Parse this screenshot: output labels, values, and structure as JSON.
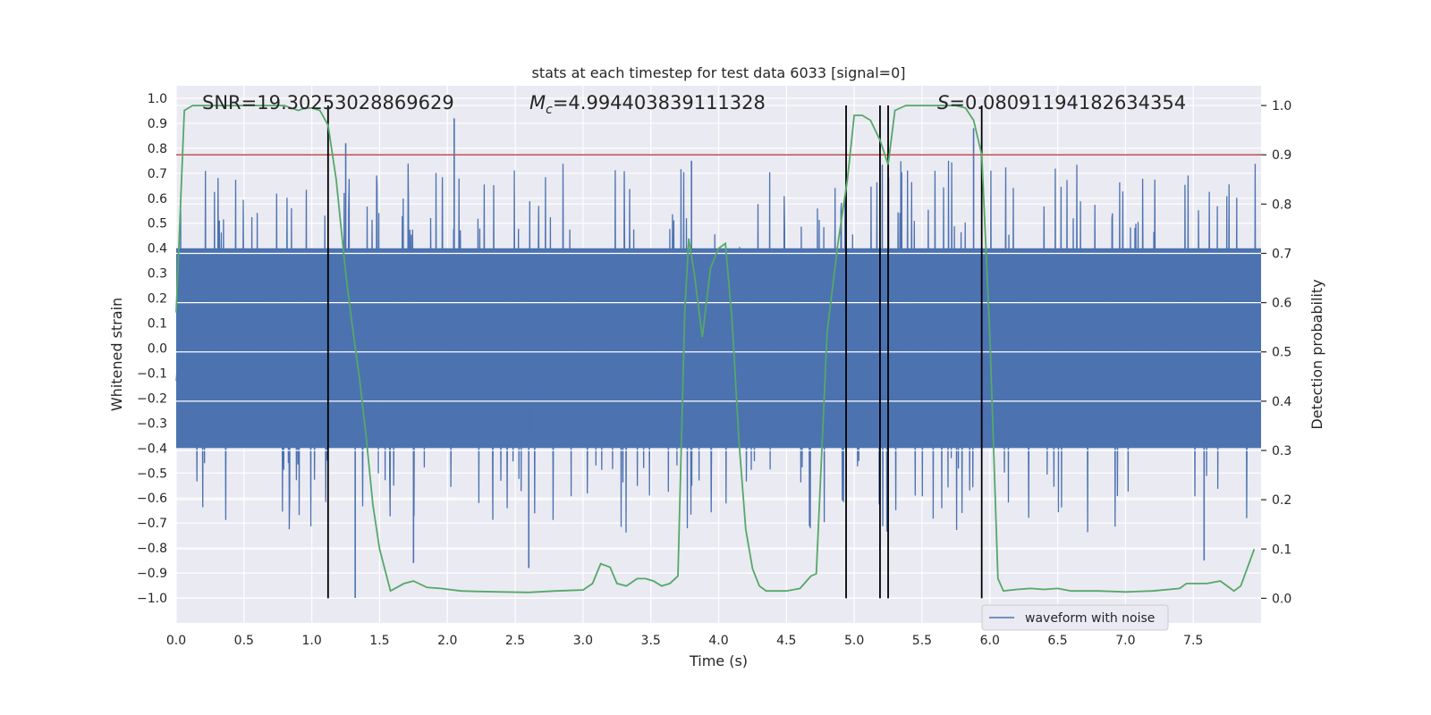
{
  "chart_data": {
    "type": "line",
    "title": "stats at each timestep for test data 6033 [signal=0]",
    "xlabel": "Time (s)",
    "ylabel_left": "Whitened strain",
    "ylabel_right": "Detection probability",
    "xlim": [
      0,
      8
    ],
    "ylim_left": [
      -1.1,
      1.05
    ],
    "ylim_right": [
      -0.05,
      1.04
    ],
    "x_ticks": [
      0.0,
      0.5,
      1.0,
      1.5,
      2.0,
      2.5,
      3.0,
      3.5,
      4.0,
      4.5,
      5.0,
      5.5,
      6.0,
      6.5,
      7.0,
      7.5
    ],
    "x_tick_labels": [
      "0.0",
      "0.5",
      "1.0",
      "1.5",
      "2.0",
      "2.5",
      "3.0",
      "3.5",
      "4.0",
      "4.5",
      "5.0",
      "5.5",
      "6.0",
      "6.5",
      "7.0",
      "7.5"
    ],
    "y_left_ticks": [
      1.0,
      0.9,
      0.8,
      0.7,
      0.6,
      0.5,
      0.4,
      0.3,
      0.2,
      0.1,
      0.0,
      -0.1,
      -0.2,
      -0.3,
      -0.4,
      -0.5,
      -0.6,
      -0.7,
      -0.8,
      -0.9,
      -1.0
    ],
    "y_left_tick_labels": [
      "1.0",
      "0.9",
      "0.8",
      "0.7",
      "0.6",
      "0.5",
      "0.4",
      "0.3",
      "0.2",
      "0.1",
      "0.0",
      "−0.1",
      "−0.2",
      "−0.3",
      "−0.4",
      "−0.5",
      "−0.6",
      "−0.7",
      "−0.8",
      "−0.9",
      "−1.0"
    ],
    "y_right_ticks": [
      1.0,
      0.9,
      0.8,
      0.7,
      0.6,
      0.5,
      0.4,
      0.3,
      0.2,
      0.1,
      0.0
    ],
    "y_right_tick_labels": [
      "1.0",
      "0.9",
      "0.8",
      "0.7",
      "0.6",
      "0.5",
      "0.4",
      "0.3",
      "0.2",
      "0.1",
      "0.0"
    ],
    "annotations": {
      "snr": "SNR=19.30253028869629",
      "mc_symbol": "M",
      "mc_sub": "c",
      "mc_value": "=4.994403839111328",
      "s_symbol": "S",
      "s_value": "=0.08091194182634354"
    },
    "threshold": {
      "value": 0.9,
      "axis": "right",
      "color": "#c44e52"
    },
    "vertical_lines": [
      1.12,
      4.94,
      5.19,
      5.25,
      5.94
    ],
    "noise_waveform": {
      "name": "waveform with noise",
      "color": "#4c72b0",
      "samples": 2400,
      "core_amplitude": 0.4,
      "peak_range": [
        -1.0,
        0.92
      ],
      "spikes": [
        [
          2.05,
          0.92
        ],
        [
          1.32,
          -1.0
        ],
        [
          2.6,
          -0.88
        ],
        [
          1.75,
          -0.86
        ],
        [
          5.88,
          0.88
        ],
        [
          7.58,
          -0.85
        ],
        [
          3.8,
          0.75
        ],
        [
          1.25,
          0.82
        ]
      ]
    },
    "detection_probability": {
      "color": "#55a868",
      "x": [
        0.0,
        0.06,
        0.12,
        0.2,
        0.3,
        0.4,
        0.5,
        0.6,
        0.7,
        0.8,
        0.9,
        0.95,
        1.0,
        1.06,
        1.12,
        1.18,
        1.25,
        1.3,
        1.35,
        1.4,
        1.45,
        1.5,
        1.58,
        1.68,
        1.75,
        1.85,
        1.95,
        2.1,
        2.2,
        2.4,
        2.6,
        2.8,
        3.0,
        3.07,
        3.13,
        3.2,
        3.25,
        3.32,
        3.4,
        3.46,
        3.52,
        3.58,
        3.64,
        3.7,
        3.75,
        3.78,
        3.82,
        3.88,
        3.94,
        4.0,
        4.05,
        4.1,
        4.15,
        4.2,
        4.25,
        4.3,
        4.35,
        4.4,
        4.5,
        4.6,
        4.68,
        4.72,
        4.8,
        4.88,
        4.95,
        5.0,
        5.06,
        5.12,
        5.19,
        5.25,
        5.3,
        5.38,
        5.45,
        5.55,
        5.65,
        5.75,
        5.82,
        5.88,
        5.94,
        6.0,
        6.06,
        6.1,
        6.2,
        6.3,
        6.4,
        6.5,
        6.6,
        6.8,
        7.0,
        7.2,
        7.4,
        7.45,
        7.5,
        7.6,
        7.7,
        7.8,
        7.85,
        7.95
      ],
      "y": [
        0.58,
        0.99,
        1.0,
        1.0,
        1.0,
        1.0,
        1.0,
        1.0,
        1.0,
        1.0,
        0.99,
        0.995,
        0.995,
        0.99,
        0.96,
        0.85,
        0.66,
        0.55,
        0.45,
        0.33,
        0.19,
        0.1,
        0.015,
        0.03,
        0.035,
        0.022,
        0.02,
        0.015,
        0.014,
        0.013,
        0.012,
        0.015,
        0.017,
        0.03,
        0.07,
        0.063,
        0.03,
        0.025,
        0.04,
        0.04,
        0.035,
        0.025,
        0.03,
        0.045,
        0.58,
        0.73,
        0.66,
        0.53,
        0.67,
        0.71,
        0.72,
        0.56,
        0.32,
        0.14,
        0.06,
        0.025,
        0.015,
        0.015,
        0.015,
        0.02,
        0.045,
        0.05,
        0.54,
        0.72,
        0.85,
        0.98,
        0.98,
        0.97,
        0.93,
        0.88,
        0.99,
        1.0,
        1.0,
        1.0,
        1.0,
        1.0,
        0.995,
        0.97,
        0.9,
        0.53,
        0.04,
        0.015,
        0.018,
        0.02,
        0.018,
        0.02,
        0.015,
        0.015,
        0.013,
        0.015,
        0.02,
        0.03,
        0.03,
        0.03,
        0.035,
        0.015,
        0.025,
        0.1
      ]
    },
    "legend": {
      "placement": "bottom-right",
      "label": "waveform with noise"
    }
  }
}
